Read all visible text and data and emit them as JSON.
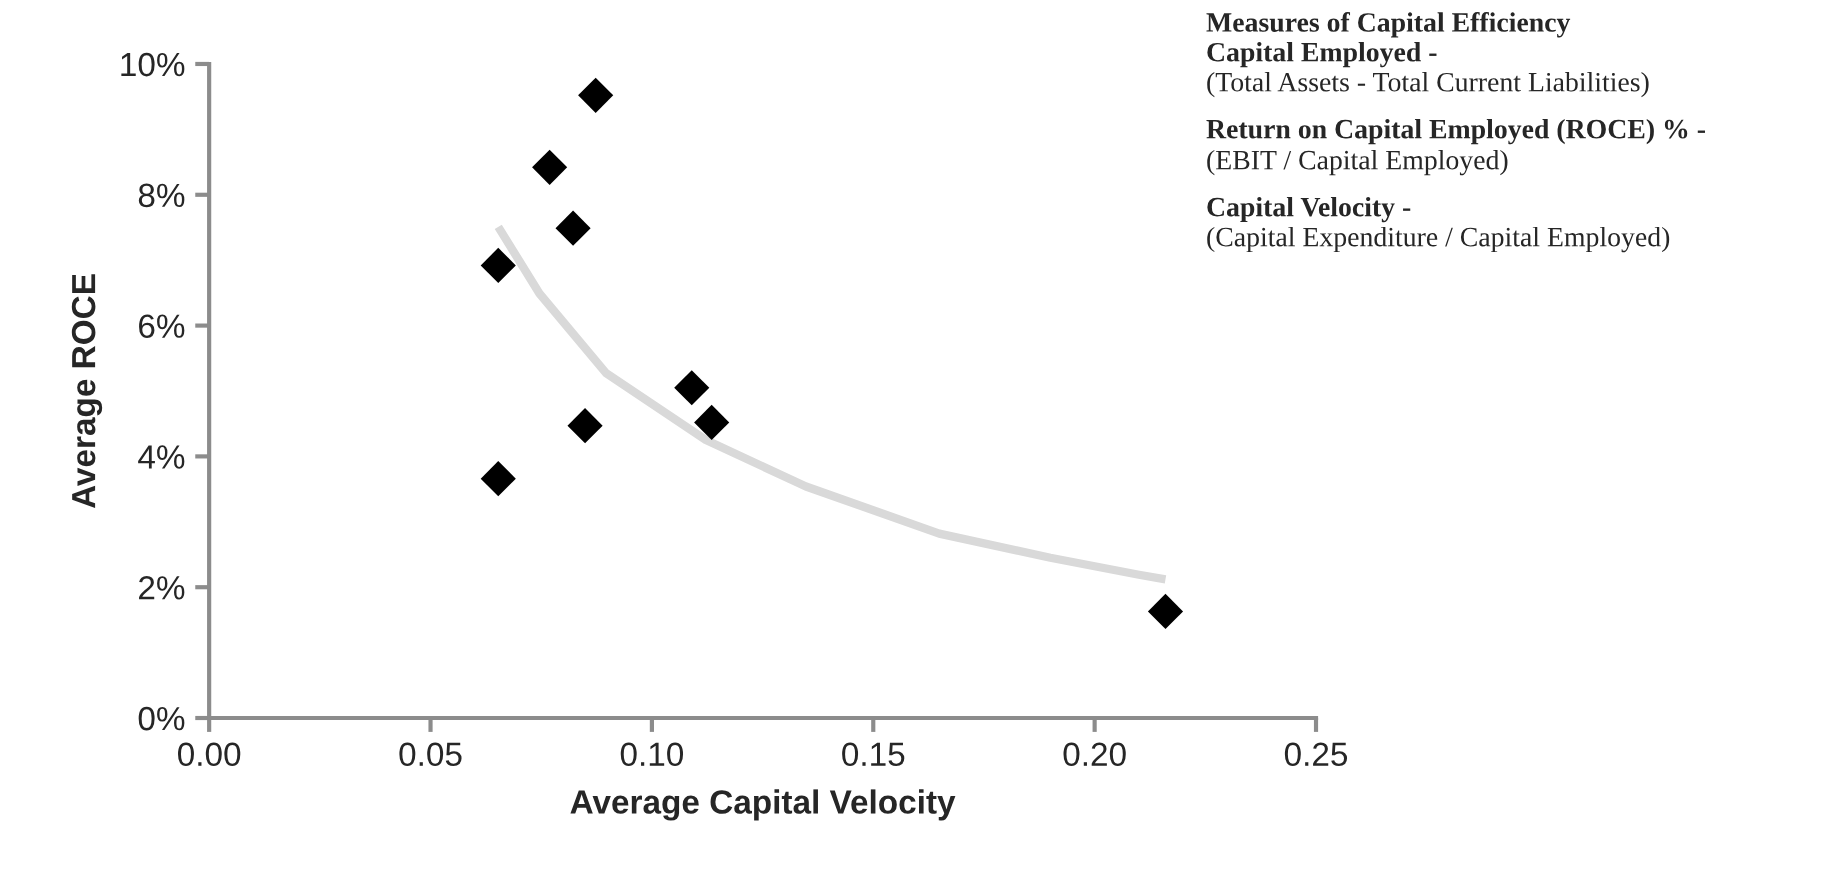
{
  "chart_data": {
    "type": "scatter",
    "title": "Measures of Capital Efficiency",
    "xlabel": "Average Capital Velocity",
    "ylabel": "Average ROCE",
    "annotations": [
      "Capital Employed -",
      "(Total Assets - Total Current Liabilities)",
      "Return on Capital Employed (ROCE) % -",
      "(EBIT / Capital Employed)",
      "Capital Velocity -",
      "(Capital Expenditure / Capital Employed)"
    ],
    "series": [
      {
        "color": "#000000",
        "marker": "diamond",
        "x": [
          0.0873,
          0.0769,
          0.0822,
          0.0653,
          0.109,
          0.1135,
          0.0849,
          0.0653,
          0.216
        ],
        "values": [
          9.52,
          8.42,
          7.49,
          6.92,
          5.05,
          4.52,
          4.47,
          3.66,
          1.63
        ]
      },
      {
        "type": "line",
        "color": "#d9d9d9",
        "marker": "none",
        "x": [
          0.0653,
          0.0746,
          0.0897,
          0.1122,
          0.1348,
          0.1649,
          0.19,
          0.21,
          0.216
        ],
        "values": [
          7.51,
          6.49,
          5.27,
          4.25,
          3.54,
          2.82,
          2.45,
          2.19,
          2.12
        ]
      }
    ],
    "xlim": [
      0,
      0.25
    ],
    "xticks": [
      {
        "value": 0,
        "label": "0.00"
      },
      {
        "value": 0.05,
        "label": "0.05"
      },
      {
        "value": 0.1,
        "label": "0.10"
      },
      {
        "value": 0.15,
        "label": "0.15"
      },
      {
        "value": 0.2,
        "label": "0.20"
      },
      {
        "value": 0.25,
        "label": "0.25"
      }
    ],
    "ylim": [
      0,
      10
    ],
    "yticks": [
      {
        "value": 0,
        "label": "0%"
      },
      {
        "value": 2,
        "label": "2%"
      },
      {
        "value": 4,
        "label": "4%"
      },
      {
        "value": 6,
        "label": "6%"
      },
      {
        "value": 8,
        "label": "8%"
      },
      {
        "value": 10,
        "label": "10%"
      }
    ],
    "grid": false,
    "legend": false
  }
}
